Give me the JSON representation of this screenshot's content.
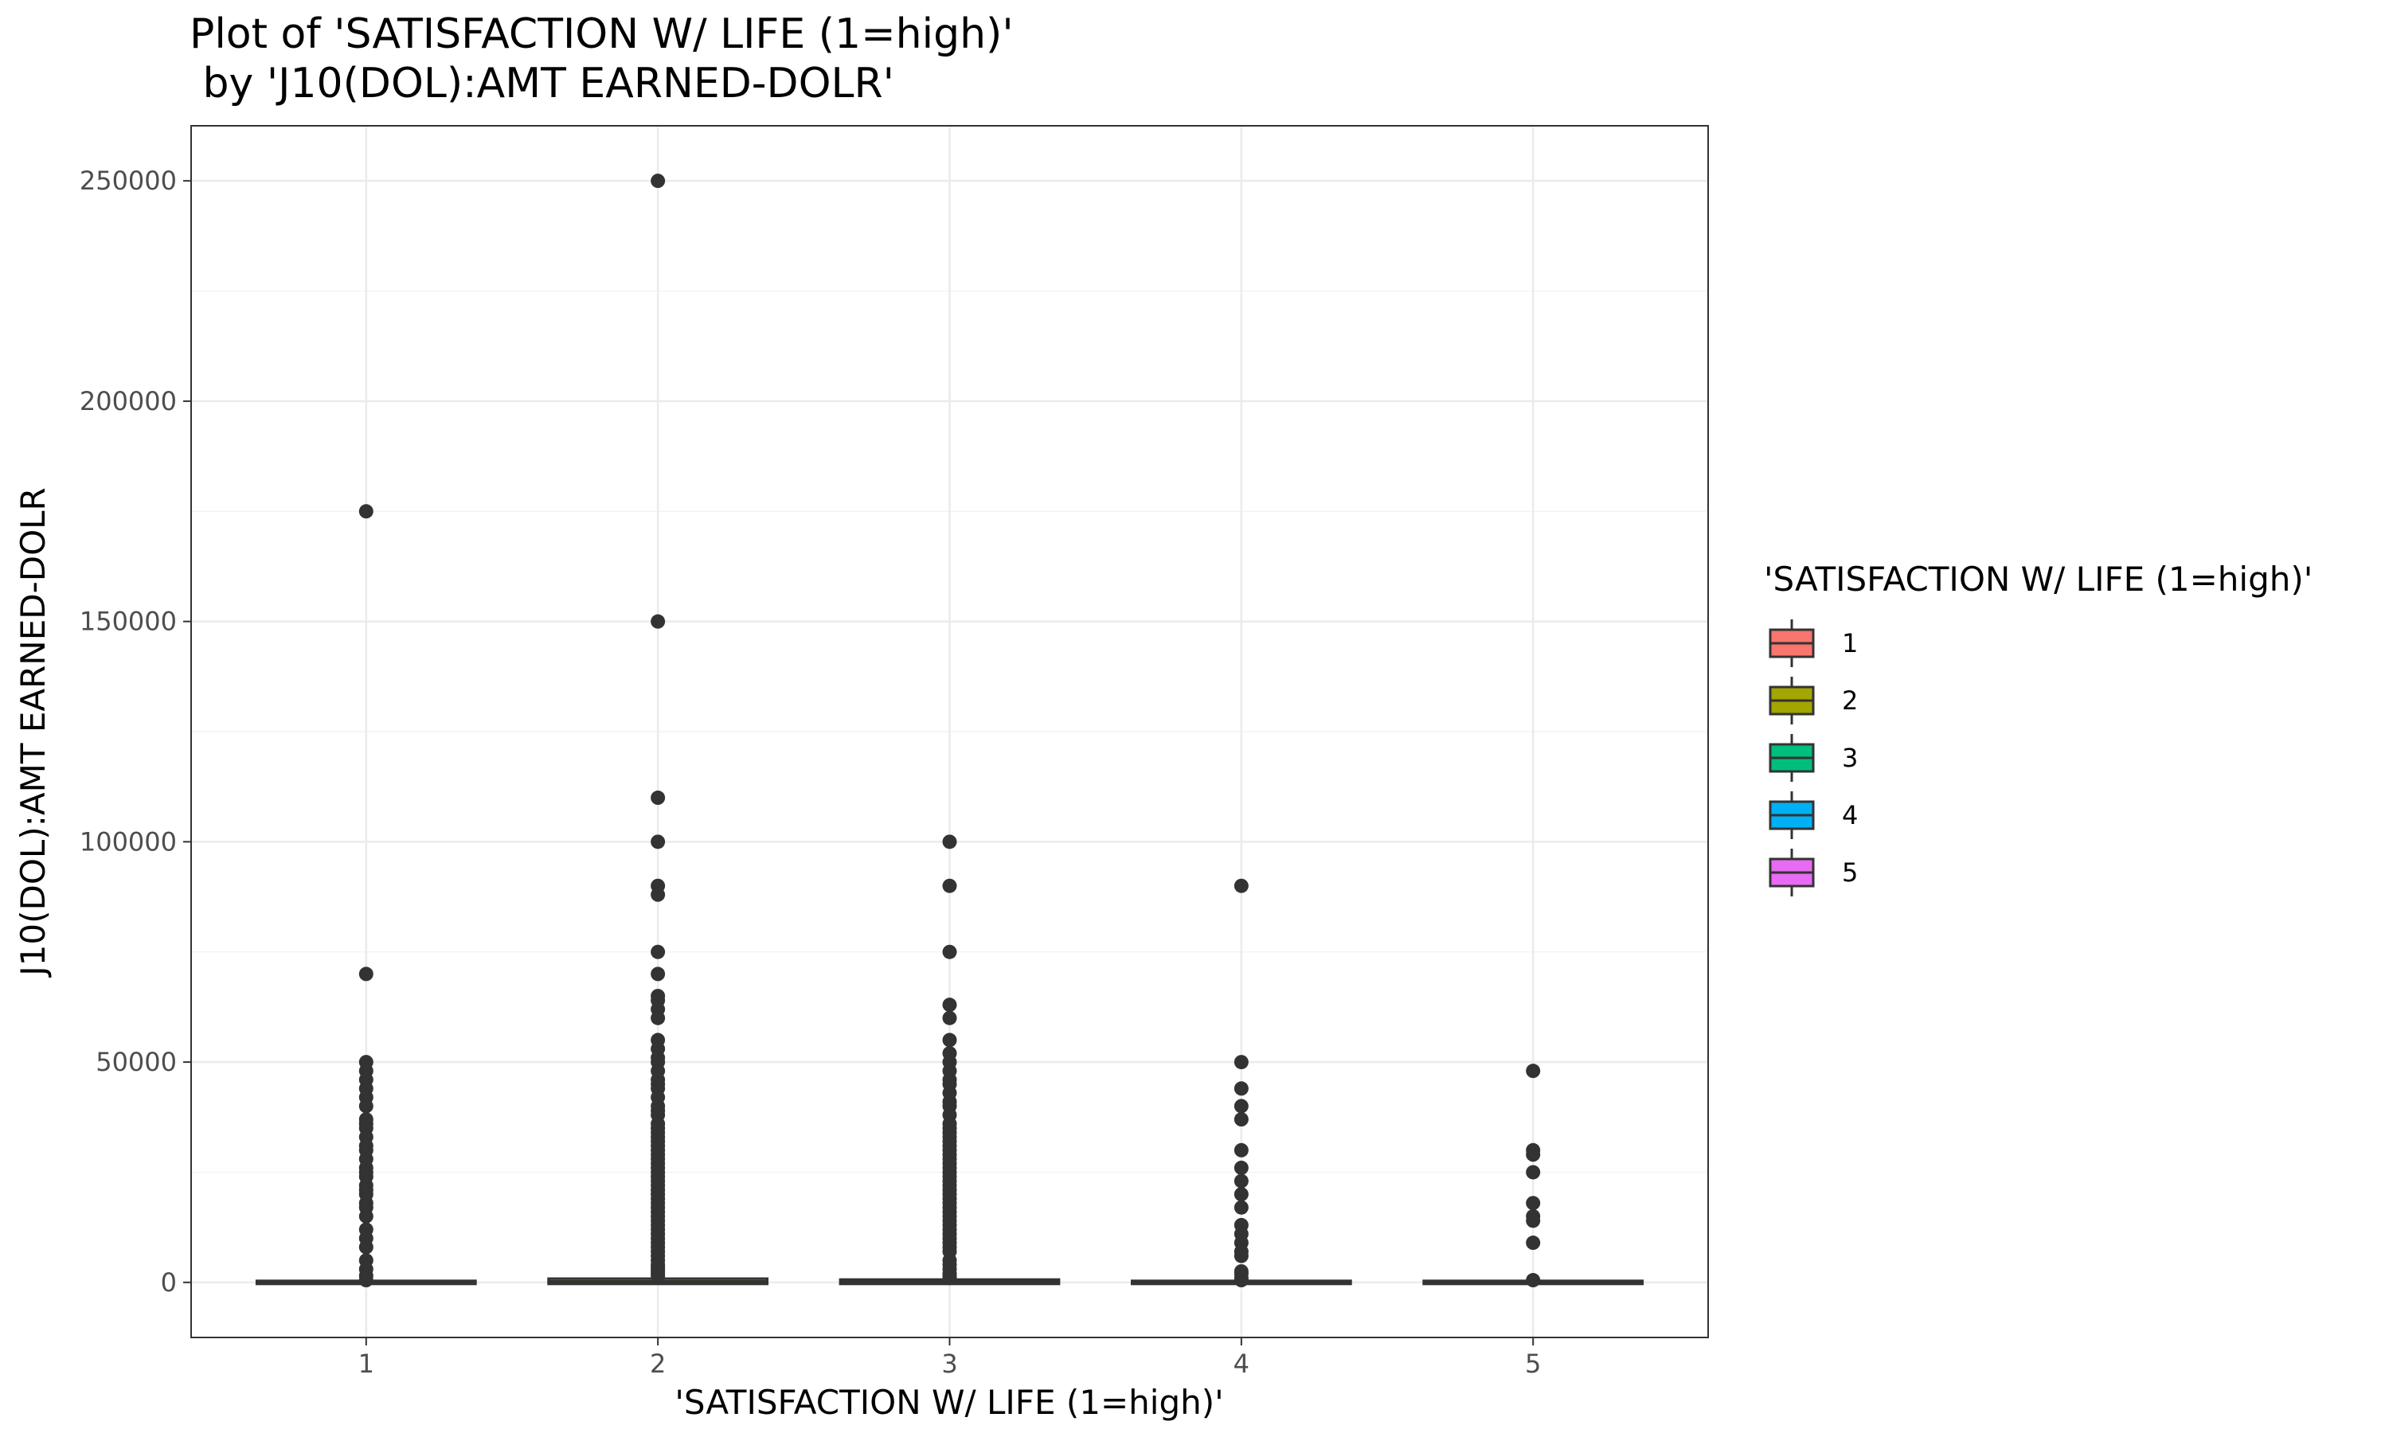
{
  "chart_data": {
    "type": "box",
    "title_lines": [
      "Plot of 'SATISFACTION W/ LIFE (1=high)'",
      " by 'J10(DOL):AMT EARNED-DOLR'"
    ],
    "xlabel": "'SATISFACTION W/ LIFE (1=high)'",
    "ylabel": "J10(DOL):AMT EARNED-DOLR",
    "categories": [
      "1",
      "2",
      "3",
      "4",
      "5"
    ],
    "ylim": [
      -12500,
      262500
    ],
    "yticks": [
      0,
      50000,
      100000,
      150000,
      200000,
      250000
    ],
    "ytick_labels": [
      "0",
      "50000",
      "100000",
      "150000",
      "200000",
      "250000"
    ],
    "grid": true,
    "legend": {
      "title": "'SATISFACTION W/ LIFE (1=high)'",
      "position": "right",
      "entries": [
        {
          "label": "1",
          "color": "#F8766D"
        },
        {
          "label": "2",
          "color": "#A3A500"
        },
        {
          "label": "3",
          "color": "#00BF7D"
        },
        {
          "label": "4",
          "color": "#00B0F6"
        },
        {
          "label": "5",
          "color": "#E76BF3"
        }
      ]
    },
    "series": [
      {
        "category": "1",
        "box": {
          "q1": 0,
          "median": 0,
          "q3": 0,
          "whisker_low": 0,
          "whisker_high": 0
        },
        "outliers": [
          175000,
          70000,
          50000,
          48000,
          46000,
          44000,
          42000,
          40000,
          37000,
          36000,
          35000,
          33000,
          31000,
          30000,
          28000,
          26000,
          25000,
          24000,
          22000,
          21000,
          20000,
          18000,
          17000,
          15000,
          12000,
          10000,
          8000,
          5000,
          3000,
          1500,
          500
        ]
      },
      {
        "category": "2",
        "box": {
          "q1": 0,
          "median": 0,
          "q3": 500,
          "whisker_low": 0,
          "whisker_high": 1200
        },
        "outliers": [
          250000,
          150000,
          110000,
          100000,
          90000,
          88000,
          75000,
          70000,
          65000,
          64000,
          62000,
          60000,
          55000,
          53000,
          51000,
          50000,
          48000,
          46000,
          45000,
          44000,
          42000,
          40000,
          39000,
          38000,
          36000,
          35000,
          34000,
          33000,
          32000,
          31000,
          30000,
          29000,
          28000,
          27000,
          26000,
          25000,
          24000,
          23000,
          22000,
          21000,
          20000,
          19000,
          18000,
          17000,
          16000,
          15000,
          14000,
          13000,
          12000,
          11000,
          10000,
          9000,
          8000,
          7000,
          6000,
          5000,
          4000,
          3500,
          3000,
          2500,
          2000,
          1500
        ]
      },
      {
        "category": "3",
        "box": {
          "q1": 0,
          "median": 0,
          "q3": 300,
          "whisker_low": 0,
          "whisker_high": 800
        },
        "outliers": [
          100000,
          90000,
          75000,
          63000,
          60000,
          55000,
          52000,
          50000,
          48000,
          46000,
          45000,
          43000,
          41000,
          40000,
          38000,
          36000,
          35000,
          34000,
          33000,
          32000,
          31000,
          30000,
          29000,
          28000,
          27000,
          26000,
          25000,
          24000,
          23000,
          22000,
          21000,
          20000,
          19000,
          18000,
          17000,
          16000,
          15000,
          14000,
          13000,
          12000,
          11000,
          10000,
          9000,
          8000,
          7000,
          5000,
          4000,
          3000,
          2000,
          1500,
          1000
        ]
      },
      {
        "category": "4",
        "box": {
          "q1": 0,
          "median": 0,
          "q3": 0,
          "whisker_low": 0,
          "whisker_high": 0
        },
        "outliers": [
          90000,
          50000,
          44000,
          40000,
          37000,
          30000,
          26000,
          23000,
          20000,
          17000,
          13000,
          11000,
          9000,
          7000,
          6000,
          2500,
          2000,
          1000,
          500
        ]
      },
      {
        "category": "5",
        "box": {
          "q1": 0,
          "median": 0,
          "q3": 0,
          "whisker_low": 0,
          "whisker_high": 0
        },
        "outliers": [
          48000,
          30000,
          29000,
          25000,
          18000,
          15000,
          14000,
          9000,
          500
        ]
      }
    ]
  }
}
